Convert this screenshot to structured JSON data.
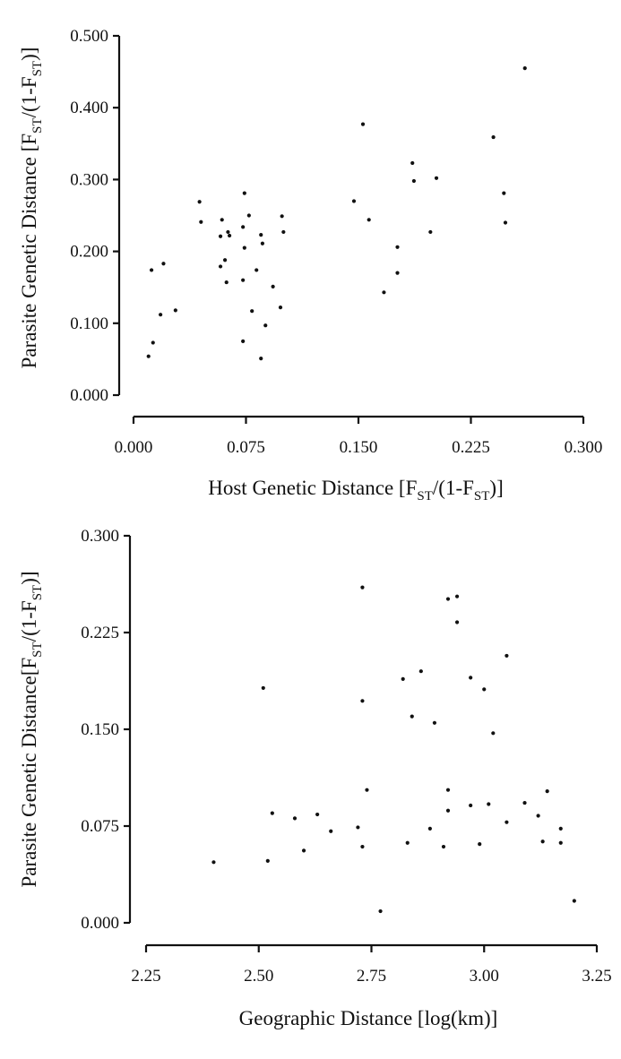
{
  "chart_data": [
    {
      "type": "scatter",
      "title": "",
      "xlabel": {
        "main": "Host Genetic Distance [F",
        "sub1": "ST",
        "mid": "/(1-F",
        "sub2": "ST",
        "end": ")]"
      },
      "ylabel": {
        "main": "Parasite Genetic Distance [F",
        "sub1": "ST",
        "mid": "/(1-F",
        "sub2": "ST",
        "end": ")]"
      },
      "xlim": [
        0.0,
        0.3
      ],
      "ylim": [
        0.0,
        0.5
      ],
      "xticks": [
        0.0,
        0.075,
        0.15,
        0.225,
        0.3
      ],
      "xtick_labels": [
        "0.000",
        "0.075",
        "0.150",
        "0.225",
        "0.300"
      ],
      "yticks": [
        0.0,
        0.1,
        0.2,
        0.3,
        0.4,
        0.5
      ],
      "ytick_labels": [
        "0.000",
        "0.100",
        "0.200",
        "0.300",
        "0.400",
        "0.500"
      ],
      "grid": false,
      "points": [
        {
          "x": 0.01,
          "y": 0.054
        },
        {
          "x": 0.013,
          "y": 0.073
        },
        {
          "x": 0.012,
          "y": 0.174
        },
        {
          "x": 0.018,
          "y": 0.112
        },
        {
          "x": 0.02,
          "y": 0.183
        },
        {
          "x": 0.028,
          "y": 0.118
        },
        {
          "x": 0.044,
          "y": 0.269
        },
        {
          "x": 0.045,
          "y": 0.241
        },
        {
          "x": 0.058,
          "y": 0.179
        },
        {
          "x": 0.058,
          "y": 0.221
        },
        {
          "x": 0.059,
          "y": 0.244
        },
        {
          "x": 0.061,
          "y": 0.188
        },
        {
          "x": 0.062,
          "y": 0.157
        },
        {
          "x": 0.063,
          "y": 0.227
        },
        {
          "x": 0.064,
          "y": 0.222
        },
        {
          "x": 0.073,
          "y": 0.234
        },
        {
          "x": 0.073,
          "y": 0.16
        },
        {
          "x": 0.073,
          "y": 0.075
        },
        {
          "x": 0.074,
          "y": 0.281
        },
        {
          "x": 0.074,
          "y": 0.205
        },
        {
          "x": 0.077,
          "y": 0.25
        },
        {
          "x": 0.079,
          "y": 0.117
        },
        {
          "x": 0.082,
          "y": 0.174
        },
        {
          "x": 0.085,
          "y": 0.051
        },
        {
          "x": 0.085,
          "y": 0.223
        },
        {
          "x": 0.086,
          "y": 0.211
        },
        {
          "x": 0.088,
          "y": 0.097
        },
        {
          "x": 0.093,
          "y": 0.151
        },
        {
          "x": 0.098,
          "y": 0.122
        },
        {
          "x": 0.099,
          "y": 0.249
        },
        {
          "x": 0.1,
          "y": 0.227
        },
        {
          "x": 0.147,
          "y": 0.27
        },
        {
          "x": 0.153,
          "y": 0.377
        },
        {
          "x": 0.157,
          "y": 0.244
        },
        {
          "x": 0.167,
          "y": 0.143
        },
        {
          "x": 0.176,
          "y": 0.206
        },
        {
          "x": 0.176,
          "y": 0.17
        },
        {
          "x": 0.186,
          "y": 0.323
        },
        {
          "x": 0.187,
          "y": 0.298
        },
        {
          "x": 0.198,
          "y": 0.227
        },
        {
          "x": 0.202,
          "y": 0.302
        },
        {
          "x": 0.24,
          "y": 0.359
        },
        {
          "x": 0.247,
          "y": 0.281
        },
        {
          "x": 0.248,
          "y": 0.24
        },
        {
          "x": 0.261,
          "y": 0.455
        }
      ]
    },
    {
      "type": "scatter",
      "title": "",
      "xlabel": {
        "main": "Geographic Distance [log(km)]"
      },
      "ylabel": {
        "main": "Parasite Genetic Distance[F",
        "sub1": "ST",
        "mid": "/(1-F",
        "sub2": "ST",
        "end": ")]"
      },
      "xlim": [
        2.25,
        3.25
      ],
      "ylim": [
        0.0,
        0.3
      ],
      "xticks": [
        2.25,
        2.5,
        2.75,
        3.0,
        3.25
      ],
      "xtick_labels": [
        "2.25",
        "2.50",
        "2.75",
        "3.00",
        "3.25"
      ],
      "yticks": [
        0.0,
        0.075,
        0.15,
        0.225,
        0.3
      ],
      "ytick_labels": [
        "0.000",
        "0.075",
        "0.150",
        "0.225",
        "0.300"
      ],
      "grid": false,
      "points": [
        {
          "x": 2.4,
          "y": 0.047
        },
        {
          "x": 2.51,
          "y": 0.182
        },
        {
          "x": 2.52,
          "y": 0.048
        },
        {
          "x": 2.53,
          "y": 0.085
        },
        {
          "x": 2.58,
          "y": 0.081
        },
        {
          "x": 2.6,
          "y": 0.056
        },
        {
          "x": 2.63,
          "y": 0.084
        },
        {
          "x": 2.66,
          "y": 0.071
        },
        {
          "x": 2.72,
          "y": 0.074
        },
        {
          "x": 2.73,
          "y": 0.059
        },
        {
          "x": 2.73,
          "y": 0.172
        },
        {
          "x": 2.73,
          "y": 0.26
        },
        {
          "x": 2.74,
          "y": 0.103
        },
        {
          "x": 2.77,
          "y": 0.009
        },
        {
          "x": 2.82,
          "y": 0.189
        },
        {
          "x": 2.83,
          "y": 0.062
        },
        {
          "x": 2.84,
          "y": 0.16
        },
        {
          "x": 2.86,
          "y": 0.195
        },
        {
          "x": 2.88,
          "y": 0.073
        },
        {
          "x": 2.89,
          "y": 0.155
        },
        {
          "x": 2.91,
          "y": 0.059
        },
        {
          "x": 2.92,
          "y": 0.087
        },
        {
          "x": 2.92,
          "y": 0.103
        },
        {
          "x": 2.92,
          "y": 0.251
        },
        {
          "x": 2.94,
          "y": 0.253
        },
        {
          "x": 2.94,
          "y": 0.233
        },
        {
          "x": 2.97,
          "y": 0.19
        },
        {
          "x": 2.97,
          "y": 0.091
        },
        {
          "x": 2.99,
          "y": 0.061
        },
        {
          "x": 3.0,
          "y": 0.181
        },
        {
          "x": 3.01,
          "y": 0.092
        },
        {
          "x": 3.02,
          "y": 0.147
        },
        {
          "x": 3.05,
          "y": 0.078
        },
        {
          "x": 3.05,
          "y": 0.207
        },
        {
          "x": 3.09,
          "y": 0.093
        },
        {
          "x": 3.12,
          "y": 0.083
        },
        {
          "x": 3.13,
          "y": 0.063
        },
        {
          "x": 3.14,
          "y": 0.102
        },
        {
          "x": 3.17,
          "y": 0.062
        },
        {
          "x": 3.17,
          "y": 0.073
        },
        {
          "x": 3.2,
          "y": 0.017
        }
      ]
    }
  ]
}
